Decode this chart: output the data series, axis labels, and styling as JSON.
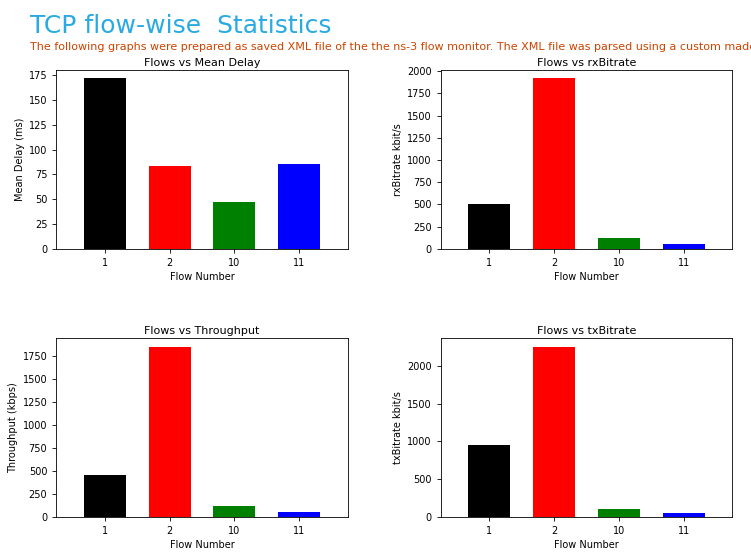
{
  "title": "TCP flow-wise  Statistics",
  "subtitle": "The following graphs were prepared as saved XML file of the the ns-3 flow monitor. The XML file was parsed using a custom made python script.",
  "title_color": "#29ABE2",
  "subtitle_color": "#CC4400",
  "title_fontsize": 18,
  "subtitle_fontsize": 8,
  "flow_numbers": [
    "1",
    "2",
    "10",
    "11"
  ],
  "bar_colors": [
    "black",
    "red",
    "green",
    "blue"
  ],
  "mean_delay": {
    "title": "Flows vs Mean Delay",
    "ylabel": "Mean Delay (ms)",
    "xlabel": "Flow Number",
    "values": [
      172,
      84,
      47,
      86
    ]
  },
  "rxBitrate": {
    "title": "Flows vs rxBitrate",
    "ylabel": "rxBitrate kbit/s",
    "xlabel": "Flow Number",
    "values": [
      500,
      1920,
      120,
      50
    ]
  },
  "throughput": {
    "title": "Flows vs Throughput",
    "ylabel": "Throughput (kbps)",
    "xlabel": "Flow Number",
    "values": [
      460,
      1850,
      120,
      50
    ]
  },
  "txBitrate": {
    "title": "Flows vs txBitrate",
    "ylabel": "txBitrate kbit/s",
    "xlabel": "Flow Number",
    "values": [
      950,
      2250,
      110,
      60
    ]
  },
  "fig_width": 7.51,
  "fig_height": 5.59,
  "dpi": 100
}
